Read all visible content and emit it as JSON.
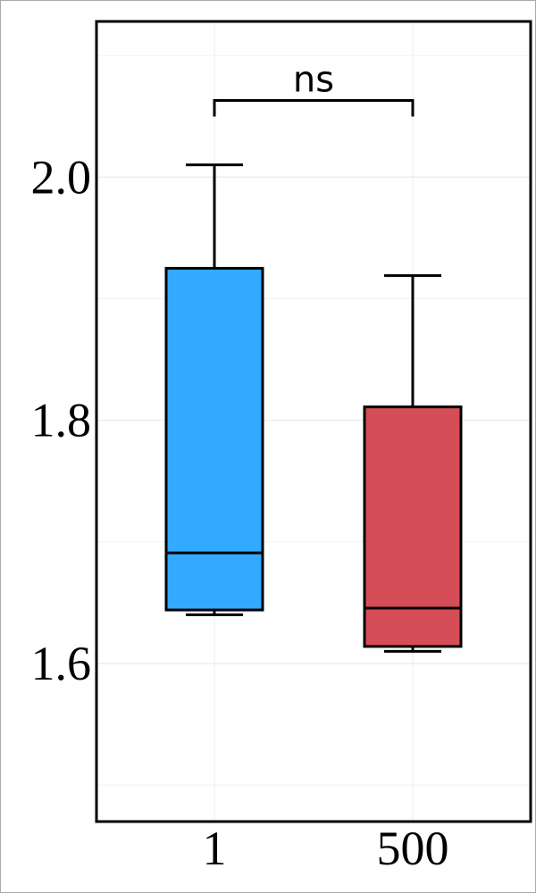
{
  "chart_data": {
    "type": "box",
    "categories": [
      "1",
      "500"
    ],
    "series": [
      {
        "color": "#33aaff",
        "min": 1.64,
        "q1": 1.644,
        "median": 1.691,
        "q3": 1.925,
        "max": 2.01
      },
      {
        "color": "#d44d57",
        "min": 1.61,
        "q1": 1.614,
        "median": 1.6455,
        "q3": 1.811,
        "max": 1.919
      }
    ],
    "ylim": [
      1.47,
      2.128
    ],
    "yticks": [
      1.6,
      1.8,
      {
        "value": 2,
        "label": "2.0"
      }
    ],
    "minor_yticks": [
      1.5,
      1.7,
      1.9,
      2.1
    ],
    "grid": true,
    "annotations": [
      {
        "text": "ns",
        "from": 0,
        "to": 1,
        "y": 2.063
      }
    ]
  }
}
